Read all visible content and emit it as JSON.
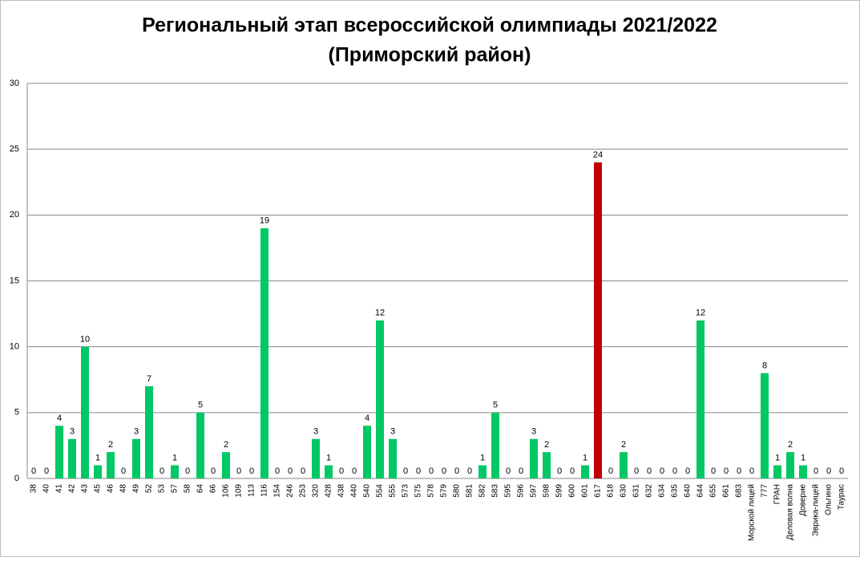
{
  "chart_data": {
    "type": "bar",
    "title": "Региональный этап всероссийской олимпиады 2021/2022",
    "subtitle": "(Приморский район)",
    "categories": [
      "38",
      "40",
      "41",
      "42",
      "43",
      "45",
      "46",
      "48",
      "49",
      "52",
      "53",
      "57",
      "58",
      "64",
      "66",
      "106",
      "109",
      "113",
      "116",
      "154",
      "246",
      "253",
      "320",
      "428",
      "438",
      "440",
      "540",
      "554",
      "555",
      "573",
      "575",
      "578",
      "579",
      "580",
      "581",
      "582",
      "583",
      "595",
      "596",
      "597",
      "598",
      "599",
      "600",
      "601",
      "617",
      "618",
      "630",
      "631",
      "632",
      "634",
      "635",
      "640",
      "644",
      "655",
      "661",
      "683",
      "Морской лицей",
      "777",
      "ГРАН",
      "Деловая волна",
      "Доверие",
      "Эврика-лицей",
      "Ольгино",
      "Таурас"
    ],
    "values": [
      0,
      0,
      4,
      3,
      10,
      1,
      2,
      0,
      3,
      7,
      0,
      1,
      0,
      5,
      0,
      2,
      0,
      0,
      19,
      0,
      0,
      0,
      3,
      1,
      0,
      0,
      4,
      12,
      3,
      0,
      0,
      0,
      0,
      0,
      0,
      1,
      5,
      0,
      0,
      3,
      2,
      0,
      0,
      1,
      24,
      0,
      2,
      0,
      0,
      0,
      0,
      0,
      12,
      0,
      0,
      0,
      0,
      8,
      1,
      2,
      1,
      0,
      0,
      0
    ],
    "colors": [
      "#00c864",
      "#00c864",
      "#00c864",
      "#00c864",
      "#00c864",
      "#00c864",
      "#00c864",
      "#00c864",
      "#00c864",
      "#00c864",
      "#00c864",
      "#00c864",
      "#00c864",
      "#00c864",
      "#00c864",
      "#00c864",
      "#00c864",
      "#00c864",
      "#00c864",
      "#00c864",
      "#00c864",
      "#00c864",
      "#00c864",
      "#00c864",
      "#00c864",
      "#00c864",
      "#00c864",
      "#00c864",
      "#00c864",
      "#00c864",
      "#00c864",
      "#00c864",
      "#00c864",
      "#00c864",
      "#00c864",
      "#00c864",
      "#00c864",
      "#00c864",
      "#00c864",
      "#00c864",
      "#00c864",
      "#00c864",
      "#00c864",
      "#00c864",
      "#c00000",
      "#00c864",
      "#00c864",
      "#00c864",
      "#00c864",
      "#00c864",
      "#00c864",
      "#00c864",
      "#00c864",
      "#00c864",
      "#00c864",
      "#00c864",
      "#00c864",
      "#00c864",
      "#00c864",
      "#00c864",
      "#00c864",
      "#00c864",
      "#00c864",
      "#00c864"
    ],
    "ylim": [
      0,
      30
    ],
    "yticks": [
      0,
      5,
      10,
      15,
      20,
      25,
      30
    ],
    "grid": true
  }
}
